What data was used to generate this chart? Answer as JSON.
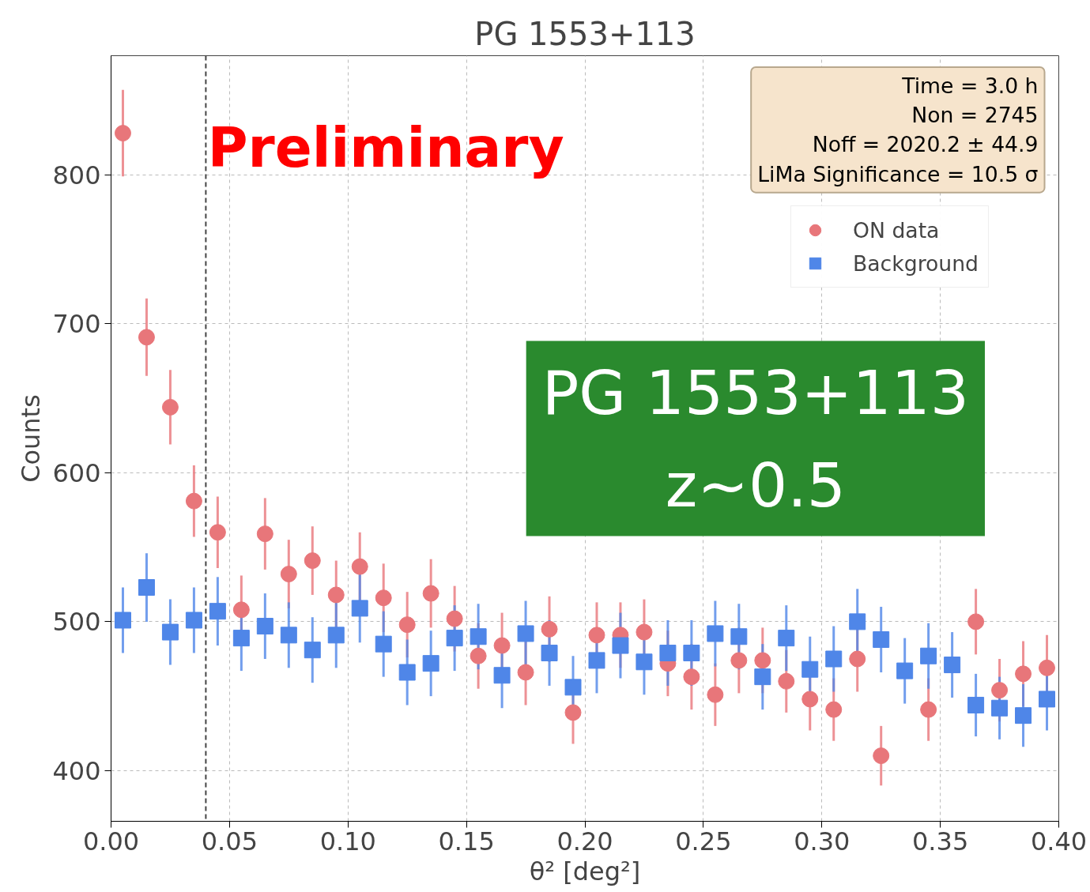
{
  "chart_data": {
    "type": "scatter",
    "title": "PG 1553+113",
    "xlabel": "θ² [deg²]",
    "ylabel": "Counts",
    "x": [
      0.005,
      0.015,
      0.025,
      0.035,
      0.045,
      0.055,
      0.065,
      0.075,
      0.085,
      0.095,
      0.105,
      0.115,
      0.125,
      0.135,
      0.145,
      0.155,
      0.165,
      0.175,
      0.185,
      0.195,
      0.205,
      0.215,
      0.225,
      0.235,
      0.245,
      0.255,
      0.265,
      0.275,
      0.285,
      0.295,
      0.305,
      0.315,
      0.325,
      0.335,
      0.345,
      0.355,
      0.365,
      0.375,
      0.385,
      0.395
    ],
    "series": [
      {
        "name": "ON data",
        "color": "#e8767a",
        "marker": "circle",
        "values": [
          828,
          691,
          644,
          581,
          560,
          508,
          559,
          532,
          541,
          518,
          537,
          516,
          498,
          519,
          502,
          477,
          484,
          466,
          495,
          439,
          491,
          491,
          493,
          472,
          463,
          451,
          474,
          474,
          460,
          448,
          441,
          475,
          410,
          null,
          441,
          null,
          500,
          454,
          465,
          469
        ],
        "errors": [
          29,
          26,
          25,
          24,
          24,
          23,
          24,
          23,
          23,
          23,
          23,
          23,
          22,
          23,
          22,
          22,
          22,
          22,
          22,
          21,
          22,
          22,
          22,
          22,
          22,
          21,
          22,
          22,
          21,
          21,
          21,
          22,
          20,
          null,
          21,
          null,
          22,
          21,
          22,
          22
        ]
      },
      {
        "name": "Background",
        "color": "#4f86e8",
        "marker": "square",
        "values": [
          501,
          523,
          493,
          501,
          507,
          489,
          497,
          491,
          481,
          491,
          509,
          485,
          466,
          472,
          489,
          490,
          464,
          492,
          479,
          456,
          474,
          484,
          473,
          479,
          479,
          492,
          490,
          463,
          489,
          468,
          475,
          500,
          488,
          467,
          477,
          471,
          444,
          442,
          437,
          448
        ],
        "errors": [
          22,
          23,
          22,
          22,
          23,
          22,
          22,
          22,
          22,
          22,
          23,
          22,
          22,
          22,
          22,
          22,
          22,
          22,
          22,
          21,
          22,
          22,
          22,
          22,
          22,
          22,
          22,
          22,
          22,
          22,
          22,
          22,
          22,
          22,
          22,
          22,
          21,
          21,
          21,
          21
        ]
      }
    ],
    "xlim": [
      0.0,
      0.4
    ],
    "ylim": [
      366,
      880
    ],
    "xticks": [
      {
        "value": 0.0,
        "label": "0.00"
      },
      {
        "value": 0.05,
        "label": "0.05"
      },
      {
        "value": 0.1,
        "label": "0.10"
      },
      {
        "value": 0.15,
        "label": "0.15"
      },
      {
        "value": 0.2,
        "label": "0.20"
      },
      {
        "value": 0.25,
        "label": "0.25"
      },
      {
        "value": 0.3,
        "label": "0.30"
      },
      {
        "value": 0.35,
        "label": "0.35"
      },
      {
        "value": 0.4,
        "label": "0.40"
      }
    ],
    "yticks": [
      400,
      500,
      600,
      700,
      800
    ],
    "ref_lines": [
      {
        "axis": "x",
        "value": 0.04,
        "color": "#444444",
        "line_style": "dashed"
      }
    ],
    "annotations": [
      "Time = 3.0 h\nNon = 2745\nNoff = 2020.2 ± 44.9\nLiMa Significance = 10.5 σ",
      "Preliminary",
      "PG 1553+113\nz~0.5"
    ],
    "grid": true,
    "legend": "top right"
  }
}
